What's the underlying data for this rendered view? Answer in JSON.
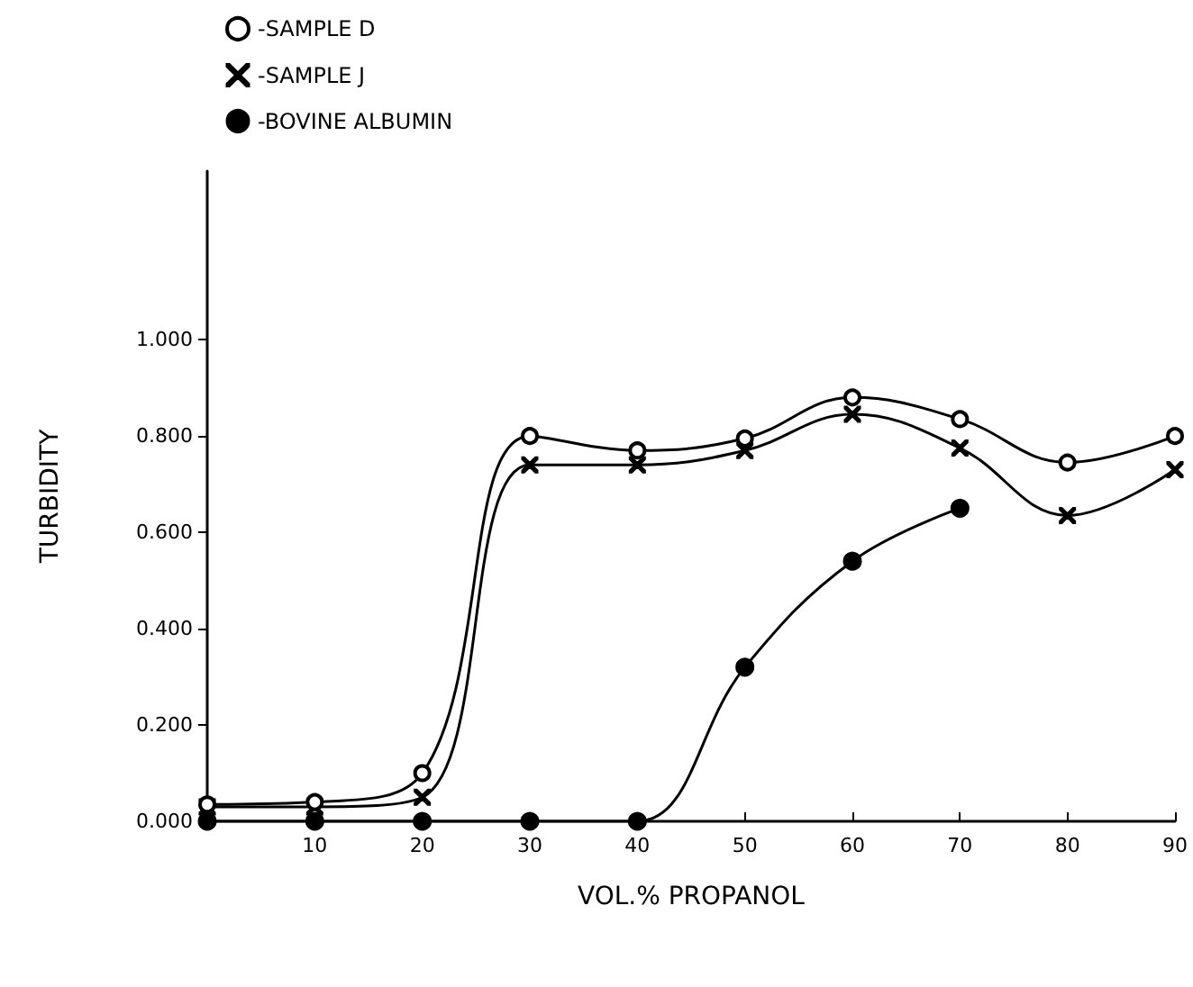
{
  "chart_data": {
    "type": "line",
    "xlabel": "VOL.% PROPANOL",
    "ylabel": "TURBIDITY",
    "x": [
      0,
      10,
      20,
      30,
      40,
      50,
      60,
      70,
      80,
      90
    ],
    "series": [
      {
        "name": "-SAMPLE D",
        "color": "#000000",
        "marker": "circle",
        "values": [
          0.035,
          0.04,
          0.1,
          0.8,
          0.77,
          0.795,
          0.88,
          0.835,
          0.745,
          0.8
        ]
      },
      {
        "name": "-SAMPLE J",
        "color": "#000000",
        "marker": "cross",
        "values": [
          0.03,
          0.03,
          0.05,
          0.74,
          0.74,
          0.77,
          0.845,
          0.775,
          0.635,
          0.73
        ]
      },
      {
        "name": "-BOVINE ALBUMIN",
        "color": "#000000",
        "marker": "filled_circle",
        "values": [
          0.0,
          0.0,
          0.0,
          0.0,
          0.0,
          0.32,
          0.54,
          0.65,
          null,
          null
        ]
      }
    ],
    "xlim": [
      0,
      90
    ],
    "xticks": [
      10,
      20,
      30,
      40,
      50,
      60,
      70,
      80,
      90
    ],
    "ylim": [
      0,
      1.35
    ],
    "yticks": [
      {
        "value": 0,
        "label": "0.000"
      },
      {
        "value": 0.2,
        "label": "0.200"
      },
      {
        "value": 0.4,
        "label": "0.400"
      },
      {
        "value": 0.6,
        "label": "0.600"
      },
      {
        "value": 0.8,
        "label": "0.800"
      },
      {
        "value": 1.0,
        "label": "1.000"
      }
    ],
    "grid": false,
    "legend": "top left",
    "line_style": "solid"
  }
}
